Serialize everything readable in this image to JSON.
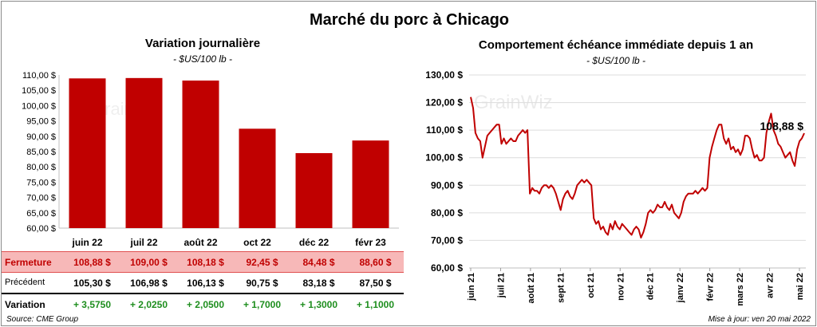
{
  "main_title": "Marché du porc à Chicago",
  "source": "Source: CME Group",
  "updated": "Mise à jour: ven 20 mai 2022",
  "colors": {
    "bar": "#c00000",
    "line": "#c00000",
    "grid": "#dcdcdc",
    "positive": "#1e8e1e",
    "close_bg": "#f7b8b8"
  },
  "watermark": "GrainWiz",
  "left_chart": {
    "title": "Variation  journalière",
    "subtitle": "- $US/100 lb -",
    "type": "bar",
    "categories": [
      "juin 22",
      "juil 22",
      "août 22",
      "oct 22",
      "déc 22",
      "févr 23"
    ],
    "values": [
      108.88,
      109.0,
      108.18,
      92.45,
      84.48,
      88.6
    ],
    "ylim": [
      60,
      110
    ],
    "yticks": [
      "60,00 $",
      "65,00 $",
      "70,00 $",
      "75,00 $",
      "80,00 $",
      "85,00 $",
      "90,00 $",
      "95,00 $",
      "100,00 $",
      "105,00 $",
      "110,00 $"
    ]
  },
  "table": {
    "close_label": "Fermeture",
    "close_values": [
      "108,88  $",
      "109,00  $",
      "108,18  $",
      "92,45  $",
      "84,48  $",
      "88,60  $"
    ],
    "prev_label": "Précédent",
    "prev_values": [
      "105,30  $",
      "106,98  $",
      "106,13  $",
      "90,75  $",
      "83,18  $",
      "87,50  $"
    ],
    "var_label": "Variation",
    "var_values": [
      "+ 3,5750",
      "+ 2,0250",
      "+ 2,0500",
      "+ 1,7000",
      "+ 1,3000",
      "+ 1,1000"
    ]
  },
  "chart_data": {
    "type": "line",
    "title": "Comportement  échéance immédiate depuis 1 an",
    "subtitle": "- $US/100 lb -",
    "ylim": [
      60,
      130
    ],
    "yticks": [
      "60,00 $",
      "70,00 $",
      "80,00 $",
      "90,00 $",
      "100,00 $",
      "110,00 $",
      "120,00 $",
      "130,00 $"
    ],
    "xticks": [
      "juin 21",
      "juil 21",
      "août 21",
      "sept 21",
      "oct 21",
      "nov 21",
      "déc 21",
      "janv 22",
      "févr 22",
      "mars 22",
      "avr 22",
      "mai 22"
    ],
    "last_label": "108,88 $",
    "series": [
      {
        "name": "Échéance immédiate",
        "values": [
          122,
          118,
          109,
          107,
          106,
          100,
          104,
          108,
          109,
          110,
          111,
          112,
          112,
          105,
          107,
          105,
          106,
          107,
          106,
          106,
          108,
          109,
          110,
          109,
          110,
          87,
          89,
          88,
          88,
          87,
          89,
          90,
          90,
          89,
          90,
          89,
          87,
          84,
          81,
          85,
          87,
          88,
          86,
          85,
          87,
          90,
          91,
          92,
          91,
          92,
          91,
          90,
          78,
          76,
          77,
          74,
          75,
          73,
          72,
          76,
          74,
          77,
          75,
          74,
          76,
          75,
          74,
          73,
          72,
          74,
          75,
          74,
          71,
          73,
          76,
          80,
          81,
          80,
          81,
          83,
          82,
          82,
          84,
          82,
          81,
          83,
          80,
          79,
          78,
          80,
          84,
          86,
          87,
          87,
          87,
          88,
          87,
          88,
          89,
          88,
          89,
          100,
          104,
          107,
          110,
          112,
          112,
          107,
          105,
          107,
          103,
          104,
          102,
          103,
          101,
          103,
          108,
          108,
          107,
          103,
          100,
          101,
          99,
          99,
          100,
          109,
          113,
          116,
          110,
          108,
          105,
          104,
          102,
          100,
          101,
          102,
          99,
          97,
          103,
          106,
          107,
          108.88
        ]
      }
    ]
  }
}
